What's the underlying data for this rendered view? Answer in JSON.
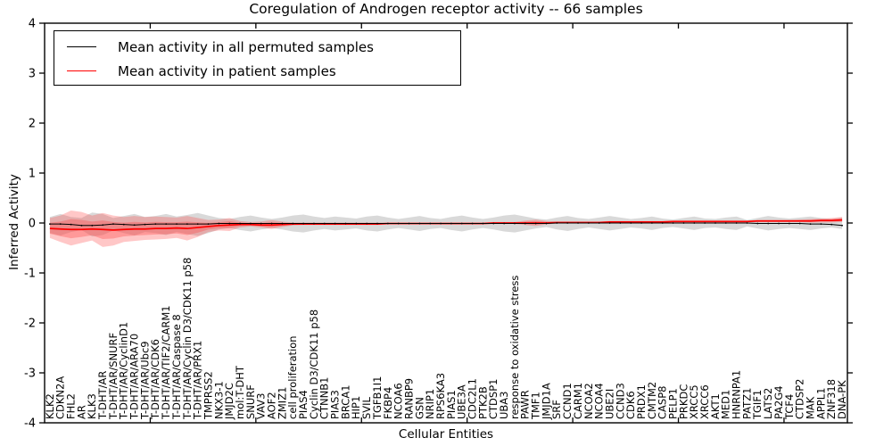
{
  "figure": {
    "title": "Coregulation of Androgen receptor activity -- 66 samples",
    "xlabel": "Cellular Entities",
    "ylabel": "Inferred Activity"
  },
  "legend": {
    "entries": [
      {
        "label": "Mean activity in all permuted samples",
        "color": "#000000"
      },
      {
        "label": "Mean activity in patient samples",
        "color": "#ff0000"
      }
    ]
  },
  "chart_data": {
    "type": "line",
    "title": "Coregulation of Androgen receptor activity -- 66 samples",
    "xlabel": "Cellular Entities",
    "ylabel": "Inferred Activity",
    "ylim": [
      -4,
      4
    ],
    "yticks": [
      -4,
      -3,
      -2,
      -1,
      0,
      1,
      2,
      3,
      4
    ],
    "x_major_tick_every": 10,
    "grid": false,
    "legend_position": "upper left",
    "colors": {
      "permuted": "#000000",
      "patient": "#ff0000",
      "permuted_band": "#aaaaaa",
      "patient_band": "#ff4444"
    },
    "categories": [
      "KLK2",
      "CDKN2A",
      "FHL2",
      "AR",
      "KLK3",
      "T-DHT/AR",
      "T-DHT/AR/SNURF",
      "T-DHT/AR/CyclinD1",
      "T-DHT/AR/ARA70",
      "T-DHT/AR/Ubc9",
      "T-DHT/AR/CDK6",
      "T-DHT/AR/TIF2/CARM1",
      "T-DHT/AR/Caspase 8",
      "T-DHT/AR/Cyclin D3/CDK11 p58",
      "T-DHT/AR/PRX1",
      "TMPRSS2",
      "NKX3-1",
      "JMJD2C",
      "mol:T-DHT",
      "SNURF",
      "VAV3",
      "AOF2",
      "ZMIZ1",
      "cell proliferation",
      "PIAS4",
      "Cyclin D3/CDK11 p58",
      "CTNNB1",
      "PIAS3",
      "BRCA1",
      "HIP1",
      "SVIL",
      "TGFB1I1",
      "FKBP4",
      "NCOA6",
      "RANBP9",
      "GSN",
      "NRIP1",
      "RPS6KA3",
      "PIAS1",
      "UBE3A",
      "CDC2L1",
      "PTK2B",
      "CTDSP1",
      "UBA3",
      "response to oxidative stress",
      "PAWR",
      "TMF1",
      "JMJD1A",
      "SRF",
      "CCND1",
      "CARM1",
      "NCOA2",
      "NCOA4",
      "UBE2I",
      "CCND3",
      "CDK6",
      "PRDX1",
      "CMTM2",
      "CASP8",
      "PELP1",
      "PRKDC",
      "XRCC5",
      "XRCC6",
      "AKT1",
      "MED1",
      "HNRNPA1",
      "PATZ1",
      "TGIF1",
      "LATS2",
      "PA2G4",
      "TCF4",
      "CTDSP2",
      "MAK",
      "APPL1",
      "ZNF318",
      "DNA-PK"
    ],
    "series": [
      {
        "name": "Mean activity in all permuted samples",
        "color": "#000000",
        "mean": [
          -0.02,
          -0.02,
          -0.03,
          -0.05,
          -0.05,
          -0.04,
          -0.02,
          -0.03,
          -0.04,
          -0.03,
          -0.02,
          -0.02,
          -0.02,
          -0.02,
          -0.02,
          -0.02,
          -0.01,
          -0.01,
          -0.01,
          -0.01,
          -0.01,
          -0.01,
          -0.01,
          -0.01,
          -0.01,
          -0.01,
          -0.01,
          -0.01,
          -0.01,
          -0.01,
          -0.01,
          -0.01,
          -0.01,
          -0.01,
          -0.01,
          -0.01,
          -0.01,
          -0.01,
          -0.01,
          -0.01,
          -0.01,
          -0.01,
          -0.01,
          -0.01,
          -0.01,
          -0.01,
          -0.01,
          -0.01,
          0,
          0,
          0,
          0,
          0,
          0,
          0,
          0,
          0,
          0,
          0,
          0,
          0,
          0,
          0,
          0,
          0,
          0,
          0,
          -0.01,
          -0.01,
          -0.01,
          -0.01,
          -0.01,
          -0.02,
          -0.02,
          -0.03,
          -0.05
        ],
        "band_upper": [
          0.12,
          0.18,
          0.12,
          0.1,
          0.21,
          0.18,
          0.1,
          0.14,
          0.18,
          0.12,
          0.14,
          0.18,
          0.13,
          0.16,
          0.2,
          0.15,
          0.1,
          0.08,
          0.12,
          0.15,
          0.11,
          0.08,
          0.11,
          0.15,
          0.17,
          0.13,
          0.1,
          0.13,
          0.11,
          0.09,
          0.13,
          0.15,
          0.11,
          0.08,
          0.11,
          0.14,
          0.1,
          0.08,
          0.12,
          0.15,
          0.11,
          0.08,
          0.11,
          0.15,
          0.17,
          0.13,
          0.09,
          0.07,
          0.11,
          0.14,
          0.1,
          0.08,
          0.11,
          0.14,
          0.11,
          0.08,
          0.1,
          0.13,
          0.09,
          0.07,
          0.1,
          0.13,
          0.09,
          0.08,
          0.11,
          0.13,
          0.06,
          0.1,
          0.14,
          0.11,
          0.09,
          0.11,
          0.13,
          0.1,
          0.08,
          0.11
        ],
        "band_lower": [
          -0.2,
          -0.25,
          -0.18,
          -0.14,
          -0.27,
          -0.24,
          -0.15,
          -0.2,
          -0.25,
          -0.18,
          -0.2,
          -0.24,
          -0.18,
          -0.22,
          -0.26,
          -0.2,
          -0.13,
          -0.1,
          -0.14,
          -0.17,
          -0.13,
          -0.1,
          -0.13,
          -0.17,
          -0.19,
          -0.15,
          -0.12,
          -0.15,
          -0.13,
          -0.11,
          -0.15,
          -0.17,
          -0.13,
          -0.1,
          -0.13,
          -0.16,
          -0.12,
          -0.1,
          -0.14,
          -0.17,
          -0.13,
          -0.1,
          -0.13,
          -0.17,
          -0.19,
          -0.15,
          -0.11,
          -0.08,
          -0.13,
          -0.16,
          -0.12,
          -0.09,
          -0.12,
          -0.15,
          -0.12,
          -0.09,
          -0.11,
          -0.14,
          -0.1,
          -0.08,
          -0.11,
          -0.14,
          -0.1,
          -0.09,
          -0.12,
          -0.14,
          -0.07,
          -0.11,
          -0.15,
          -0.12,
          -0.1,
          -0.12,
          -0.14,
          -0.11,
          -0.09,
          -0.12
        ]
      },
      {
        "name": "Mean activity in patient samples",
        "color": "#ff0000",
        "mean": [
          -0.11,
          -0.12,
          -0.13,
          -0.13,
          -0.12,
          -0.13,
          -0.14,
          -0.13,
          -0.12,
          -0.12,
          -0.11,
          -0.11,
          -0.1,
          -0.11,
          -0.09,
          -0.07,
          -0.05,
          -0.04,
          -0.03,
          -0.03,
          -0.04,
          -0.04,
          -0.03,
          -0.02,
          -0.02,
          -0.02,
          -0.02,
          -0.02,
          -0.02,
          -0.02,
          -0.02,
          -0.02,
          -0.01,
          -0.01,
          -0.01,
          -0.01,
          -0.01,
          -0.01,
          -0.01,
          -0.01,
          -0.01,
          -0.01,
          0,
          0,
          0,
          0,
          0,
          0,
          0.01,
          0.01,
          0.01,
          0.01,
          0.01,
          0.02,
          0.02,
          0.02,
          0.02,
          0.02,
          0.02,
          0.03,
          0.03,
          0.03,
          0.03,
          0.03,
          0.03,
          0.03,
          0.03,
          0.04,
          0.04,
          0.04,
          0.04,
          0.04,
          0.04,
          0.05,
          0.05,
          0.06
        ],
        "band_upper": [
          0.1,
          0.15,
          0.25,
          0.22,
          0.15,
          0.2,
          0.15,
          0.12,
          0.14,
          0.12,
          0.13,
          0.12,
          0.11,
          0.14,
          0.1,
          0.06,
          0.07,
          0.1,
          0.04,
          0.02,
          0.03,
          0.06,
          0.03,
          0.01,
          0.01,
          0.01,
          0.01,
          0.01,
          0.01,
          0.01,
          0.01,
          0.01,
          0.01,
          0.01,
          0.01,
          0.01,
          0.01,
          0.01,
          0.01,
          0.01,
          0.01,
          0.01,
          0.02,
          0.02,
          0.02,
          0.05,
          0.07,
          0.04,
          0.03,
          0.03,
          0.03,
          0.03,
          0.03,
          0.04,
          0.04,
          0.04,
          0.04,
          0.04,
          0.04,
          0.05,
          0.05,
          0.05,
          0.05,
          0.05,
          0.05,
          0.05,
          0.05,
          0.06,
          0.06,
          0.06,
          0.06,
          0.07,
          0.08,
          0.09,
          0.1,
          0.12
        ],
        "band_lower": [
          -0.3,
          -0.38,
          -0.45,
          -0.4,
          -0.35,
          -0.48,
          -0.45,
          -0.38,
          -0.36,
          -0.34,
          -0.33,
          -0.32,
          -0.3,
          -0.35,
          -0.28,
          -0.18,
          -0.15,
          -0.16,
          -0.09,
          -0.07,
          -0.09,
          -0.12,
          -0.08,
          -0.05,
          -0.04,
          -0.04,
          -0.04,
          -0.04,
          -0.04,
          -0.04,
          -0.04,
          -0.04,
          -0.03,
          -0.03,
          -0.03,
          -0.03,
          -0.03,
          -0.03,
          -0.03,
          -0.03,
          -0.03,
          -0.03,
          -0.02,
          -0.02,
          -0.02,
          -0.04,
          -0.06,
          -0.03,
          -0.01,
          -0.01,
          -0.01,
          -0.01,
          -0.01,
          0,
          0,
          0,
          0,
          0,
          0,
          0.01,
          0.01,
          0.01,
          0.01,
          0.01,
          0.01,
          0.01,
          0.01,
          0.02,
          0.02,
          0.02,
          0.02,
          0.02,
          0.01,
          0.01,
          0.01,
          0.02
        ]
      }
    ]
  }
}
